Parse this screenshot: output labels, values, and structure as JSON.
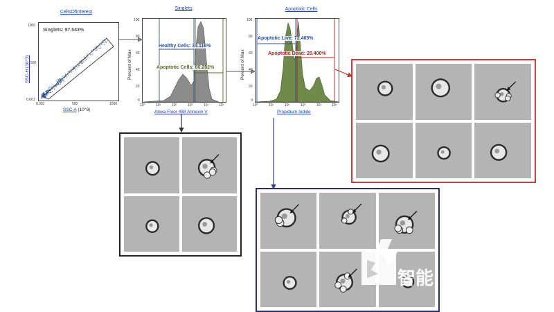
{
  "plots": {
    "cells_of_interest": {
      "title": "CellsOfInterest",
      "gate_label": "Singlets: 97.543%",
      "y_label": "SSC-H (10^3)",
      "y_ticks": [
        "1000",
        "500",
        "0.001"
      ],
      "x_label": "SSC-A",
      "x_unit": "(10^3)",
      "x_ticks": [
        "0.001",
        "500",
        "1000"
      ]
    },
    "singlets": {
      "title": "Singlets",
      "y_label": "Percent of Max",
      "y_ticks": [
        "100",
        "80",
        "60",
        "40",
        "20",
        "0"
      ],
      "x_ticks": [
        "10°",
        "10¹",
        "10²",
        "10³",
        "10⁴",
        "10⁵"
      ],
      "x_label": "Alexa Fluor 488 Annexin V",
      "gate_healthy": "Healthy Cells: 34.116%",
      "gate_apoptotic": "Apoptotic Cells: 66.282%"
    },
    "apoptotic_cells": {
      "title": "Apoptotic Cells",
      "y_label": "Percent of Max",
      "y_ticks": [
        "100",
        "80",
        "60",
        "40",
        "20",
        "0"
      ],
      "x_ticks": [
        "10°",
        "10¹",
        "10²",
        "10³",
        "10⁴",
        "10⁵"
      ],
      "x_label": "Propidium Iodide",
      "gate_live": "Apoptotic Live: 72.465%",
      "gate_dead": "Apoptotic Dead: 25.400%"
    }
  },
  "colors": {
    "link_blue": "#1a3fbf",
    "healthy_gate": "#2a4fa0",
    "apoptotic_gate": "#5a6a2a",
    "dead_gate": "#b02020",
    "red_frame": "#d23a3a",
    "navy_frame": "#2a2f6a",
    "black_frame": "#222222",
    "histogram_gray": "#8c8c8c",
    "histogram_green": "#6f8a4a"
  },
  "panels": {
    "healthy_cells_panel": {
      "rows": 2,
      "cols": 2,
      "arrows": [
        false,
        true,
        false,
        false
      ]
    },
    "apoptotic_live_panel": {
      "rows": 2,
      "cols": 3,
      "arrows": [
        true,
        true,
        true,
        false,
        true,
        false
      ]
    },
    "apoptotic_dead_panel": {
      "rows": 2,
      "cols": 3,
      "arrows": [
        false,
        false,
        true,
        false,
        false,
        false
      ]
    }
  },
  "watermark": {
    "text": "智能"
  }
}
